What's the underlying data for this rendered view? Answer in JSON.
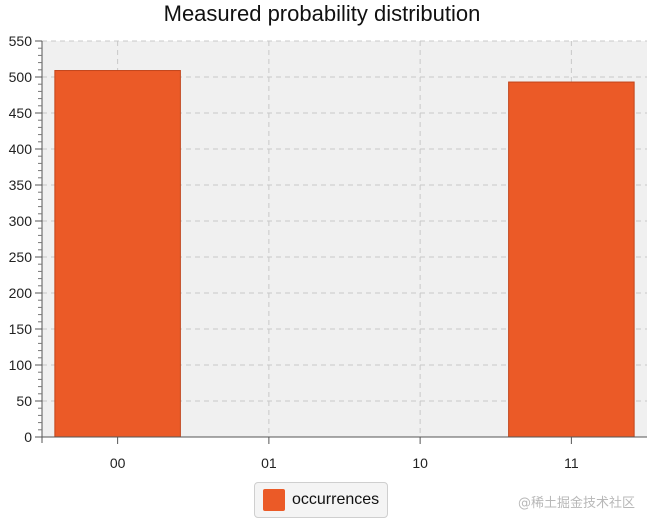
{
  "chart_data": {
    "type": "bar",
    "title": "Measured probability distribution",
    "categories": [
      "00",
      "01",
      "10",
      "11"
    ],
    "series": [
      {
        "name": "occurrences",
        "values": [
          509,
          0,
          0,
          493
        ]
      }
    ],
    "ylim": [
      0,
      550
    ],
    "yticks": [
      "0",
      "50",
      "100",
      "150",
      "200",
      "250",
      "300",
      "350",
      "400",
      "450",
      "500",
      "550"
    ],
    "grid": true,
    "legend_position": "bottom-center",
    "bar_color": "#eb5a27",
    "bar_stroke": "#c2451b",
    "plot_background": "#f0f0f0",
    "grid_color": "#c8c8c8"
  },
  "watermark": "@稀土掘金技术社区"
}
